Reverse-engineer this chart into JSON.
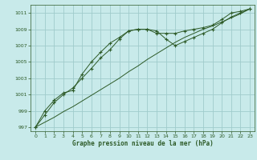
{
  "title": "Graphe pression niveau de la mer (hPa)",
  "bg_color": "#c8eaea",
  "grid_color": "#a0cccc",
  "line_color": "#2d5a27",
  "xlim": [
    -0.5,
    23.5
  ],
  "ylim": [
    996.5,
    1012.0
  ],
  "yticks": [
    997,
    999,
    1001,
    1003,
    1005,
    1007,
    1009,
    1011
  ],
  "xticks": [
    0,
    1,
    2,
    3,
    4,
    5,
    6,
    7,
    8,
    9,
    10,
    11,
    12,
    13,
    14,
    15,
    16,
    17,
    18,
    19,
    20,
    21,
    22,
    23
  ],
  "series1": {
    "x": [
      0,
      1,
      2,
      3,
      4,
      5,
      6,
      7,
      8,
      9,
      10,
      11,
      12,
      13,
      14,
      15,
      16,
      17,
      18,
      19,
      20,
      21,
      22,
      23
    ],
    "y": [
      997.0,
      999.0,
      1000.3,
      1001.2,
      1001.5,
      1003.5,
      1005.0,
      1006.2,
      1007.3,
      1008.0,
      1008.8,
      1009.0,
      1009.0,
      1008.5,
      1008.5,
      1008.5,
      1008.8,
      1009.0,
      1009.2,
      1009.5,
      1010.2,
      1011.0,
      1011.2,
      1011.5
    ]
  },
  "series2": {
    "x": [
      0,
      1,
      2,
      3,
      4,
      5,
      6,
      7,
      8,
      9,
      10,
      11,
      12,
      13,
      14,
      15,
      16,
      17,
      18,
      19,
      20,
      21,
      22,
      23
    ],
    "y": [
      997.0,
      998.5,
      1000.0,
      1001.0,
      1001.8,
      1003.0,
      1004.2,
      1005.5,
      1006.5,
      1007.8,
      1008.8,
      1009.0,
      1009.0,
      1008.8,
      1007.8,
      1007.0,
      1007.5,
      1008.0,
      1008.5,
      1009.0,
      1009.8,
      1010.5,
      1011.0,
      1011.5
    ]
  },
  "series3": {
    "x": [
      0,
      1,
      2,
      3,
      4,
      5,
      6,
      7,
      8,
      9,
      10,
      11,
      12,
      13,
      14,
      15,
      16,
      17,
      18,
      19,
      20,
      21,
      22,
      23
    ],
    "y": [
      997.0,
      997.6,
      998.2,
      998.9,
      999.5,
      1000.2,
      1000.9,
      1001.6,
      1002.3,
      1003.0,
      1003.8,
      1004.5,
      1005.3,
      1006.0,
      1006.7,
      1007.4,
      1008.0,
      1008.5,
      1009.0,
      1009.4,
      1009.9,
      1010.4,
      1010.9,
      1011.5
    ]
  },
  "title_fontsize": 5.5,
  "tick_fontsize": 4.5,
  "linewidth": 0.7,
  "markersize": 3.0
}
